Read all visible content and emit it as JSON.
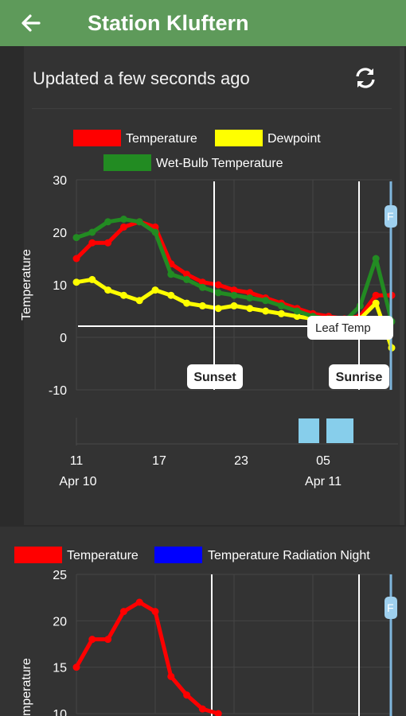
{
  "appbar": {
    "title": "Station Kluftern",
    "back_icon": "arrow-left-icon",
    "color": "#5e9a5a"
  },
  "status": {
    "updated_text": "Updated a few seconds ago",
    "refresh_icon": "refresh-icon"
  },
  "chart_data": [
    {
      "type": "line",
      "ylabel": "Temperature",
      "ylim": [
        -10,
        30
      ],
      "yticks": [
        "30",
        "20",
        "10",
        "0",
        "-10"
      ],
      "xticks": [
        {
          "top": "11",
          "bottom": "Apr 10"
        },
        {
          "top": "17",
          "bottom": ""
        },
        {
          "top": "23",
          "bottom": ""
        },
        {
          "top": "05",
          "bottom": "Apr 11"
        }
      ],
      "x_hours": [
        11,
        12,
        13,
        14,
        15,
        16,
        17,
        18,
        19,
        20,
        21,
        22,
        23,
        24,
        25,
        26,
        27,
        28,
        29,
        30,
        31
      ],
      "series": [
        {
          "name": "Temperature",
          "color": "#ff0000",
          "values": [
            15,
            18,
            18,
            21,
            22,
            21,
            14,
            12,
            10.5,
            10,
            9,
            8.5,
            7.5,
            6.5,
            5.5,
            4.5,
            4,
            3.5,
            4,
            8,
            8
          ]
        },
        {
          "name": "Dewpoint",
          "color": "#ffff00",
          "values": [
            10.5,
            11,
            9,
            8,
            7,
            9,
            8,
            6.5,
            6,
            5.5,
            6,
            5.5,
            5,
            4.5,
            4,
            3.5,
            3.5,
            3,
            3.5,
            6.5,
            -2
          ]
        },
        {
          "name": "Wet-Bulb Temperature",
          "color": "#228b22",
          "values": [
            19,
            20,
            22,
            22.5,
            22,
            20,
            12,
            11,
            9.5,
            8.5,
            8,
            7.5,
            7,
            6,
            5,
            4,
            3.5,
            3,
            6,
            15,
            3
          ]
        }
      ],
      "annotations": {
        "sunset": "Sunset",
        "sunrise": "Sunrise",
        "leaf_temp": "Leaf Temp",
        "flag": "F"
      }
    },
    {
      "type": "line",
      "ylabel": "Temperature",
      "ylim": [
        10,
        25
      ],
      "yticks": [
        "25",
        "20",
        "15",
        "10"
      ],
      "series": [
        {
          "name": "Temperature",
          "color": "#ff0000",
          "values": [
            15,
            18,
            18,
            21,
            22,
            21,
            14,
            12,
            10.5,
            10
          ]
        },
        {
          "name": "Temperature Radiation Night",
          "color": "#0000ff",
          "values": []
        }
      ],
      "annotations": {
        "flag": "F"
      }
    }
  ]
}
